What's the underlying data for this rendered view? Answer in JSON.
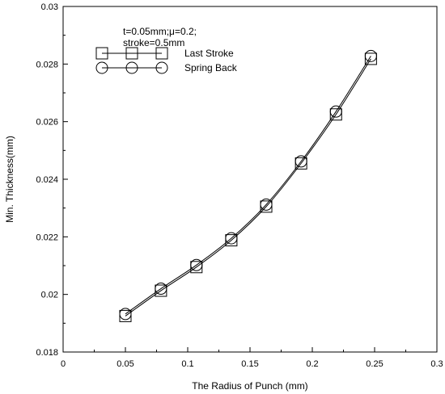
{
  "chart_data": {
    "type": "line",
    "title": "",
    "xlabel": "The Radius of Punch (mm)",
    "ylabel": "Min. Thickness(mm)",
    "xlim": [
      0,
      0.3
    ],
    "ylim": [
      0.018,
      0.03
    ],
    "x_ticks": [
      "0",
      "0.05",
      "0.1",
      "0.15",
      "0.2",
      "0.25",
      "0.3"
    ],
    "y_ticks": [
      "0.018",
      "0.02",
      "0.022",
      "0.024",
      "0.026",
      "0.028",
      "0.03"
    ],
    "grid": false,
    "legend_position": "top-left",
    "annotation": [
      "t=0.05mm;μ=0.2;",
      "stroke=0.5mm"
    ],
    "series": [
      {
        "name": "Last Stroke",
        "marker": "square",
        "x": [
          0.05,
          0.0785,
          0.107,
          0.135,
          0.163,
          0.191,
          0.219,
          0.247
        ],
        "y": [
          0.01925,
          0.02013,
          0.02095,
          0.02188,
          0.02305,
          0.02455,
          0.02625,
          0.02818
        ]
      },
      {
        "name": "Spring Back",
        "marker": "circle",
        "x": [
          0.05,
          0.0785,
          0.107,
          0.135,
          0.163,
          0.191,
          0.219,
          0.247
        ],
        "y": [
          0.01932,
          0.0202,
          0.02102,
          0.02195,
          0.02312,
          0.02462,
          0.02635,
          0.02828
        ]
      }
    ],
    "colors": {
      "axis": "#000000",
      "line": "#000000"
    }
  }
}
